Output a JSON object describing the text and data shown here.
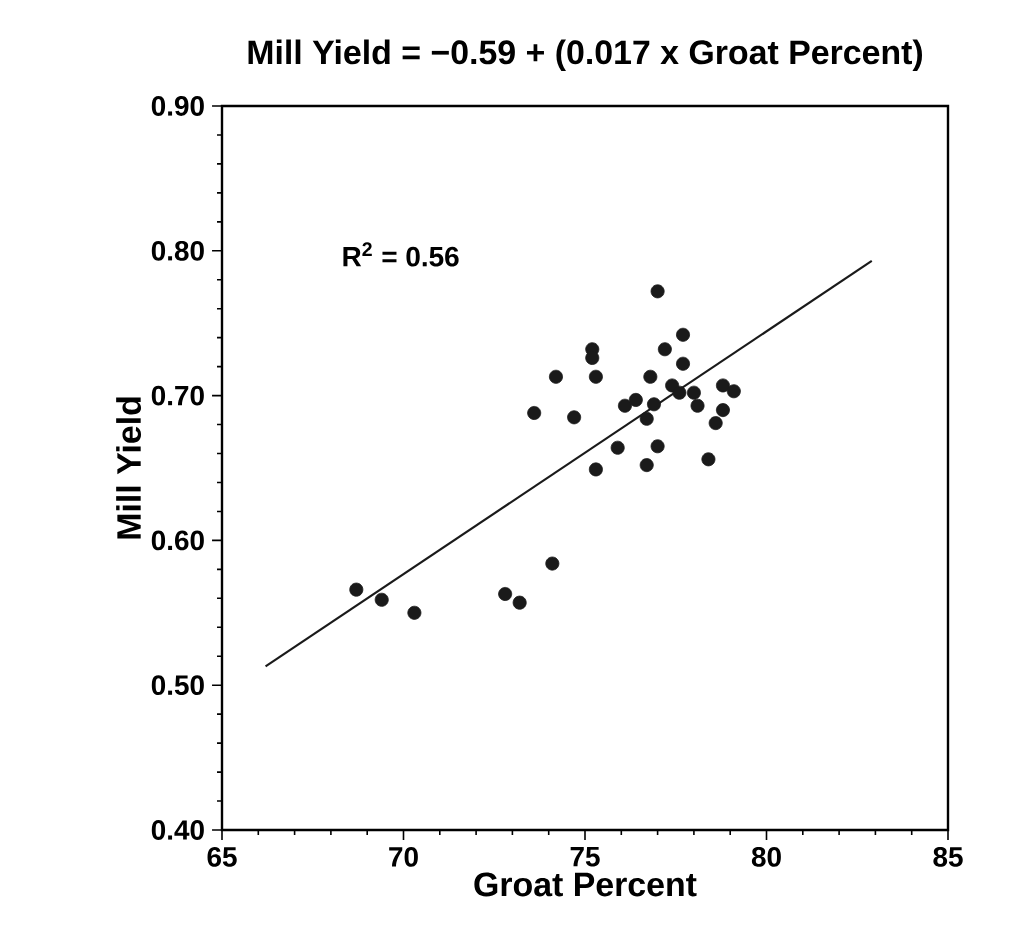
{
  "chart_data": {
    "type": "scatter",
    "title": "Mill Yield = −0.59 + (0.017 x Groat Percent)",
    "xlabel": "Groat Percent",
    "ylabel": "Mill Yield",
    "annotations": [
      "R$^{2}$ = 0.56"
    ],
    "xlim": [
      65,
      85
    ],
    "xticks": [
      65,
      70,
      75,
      80,
      85
    ],
    "ylim": [
      0.4,
      0.9
    ],
    "yticks": [
      {
        "value": 0.4,
        "label": "0.40"
      },
      {
        "value": 0.5,
        "label": "0.50"
      },
      {
        "value": 0.6,
        "label": "0.60"
      },
      {
        "value": 0.7,
        "label": "0.70"
      },
      {
        "value": 0.8,
        "label": "0.80"
      },
      {
        "value": 0.9,
        "label": "0.90"
      }
    ],
    "grid": false,
    "series": [
      {
        "marker": "circle",
        "color": "#1a1a1a",
        "x": [
          77.0,
          77.7,
          77.2,
          75.2,
          75.2,
          74.2,
          75.3,
          76.8,
          77.7,
          77.4,
          78.0,
          78.8,
          79.1,
          78.8,
          78.6,
          78.1,
          76.1,
          76.4,
          76.7,
          76.9,
          77.6,
          73.6,
          74.7,
          75.9,
          77.0,
          75.3,
          76.7,
          78.4,
          74.1,
          72.8,
          73.2,
          70.3,
          68.7,
          69.4
        ],
        "values": [
          0.772,
          0.742,
          0.732,
          0.732,
          0.726,
          0.713,
          0.713,
          0.713,
          0.722,
          0.707,
          0.702,
          0.707,
          0.703,
          0.69,
          0.681,
          0.693,
          0.693,
          0.697,
          0.684,
          0.694,
          0.702,
          0.688,
          0.685,
          0.664,
          0.665,
          0.649,
          0.652,
          0.656,
          0.584,
          0.563,
          0.557,
          0.55,
          0.566,
          0.559
        ]
      },
      {
        "type": "line",
        "color": "#1a1a1a",
        "line_style": "solid",
        "x": [
          66.2,
          82.9
        ],
        "values": [
          0.513,
          0.793
        ]
      }
    ]
  }
}
